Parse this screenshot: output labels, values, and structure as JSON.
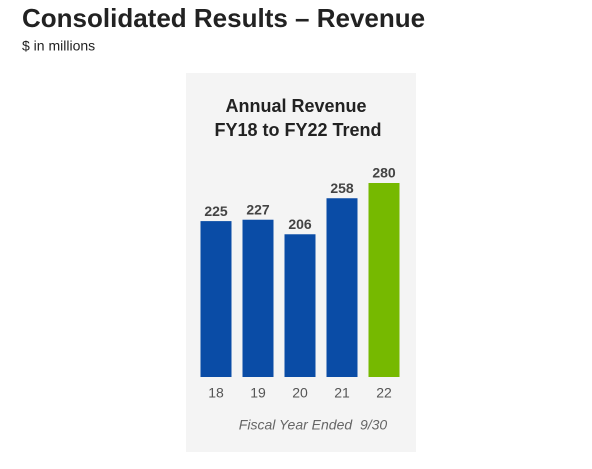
{
  "header": {
    "title": "Consolidated Results – Revenue",
    "subtitle": "$ in millions"
  },
  "chart_data": {
    "type": "bar",
    "title": "Annual Revenue",
    "subtitle": "FY18 to FY22 Trend",
    "categories": [
      "18",
      "19",
      "20",
      "21",
      "22"
    ],
    "values": [
      225,
      227,
      206,
      258,
      280
    ],
    "colors": [
      "#0a4ca6",
      "#0a4ca6",
      "#0a4ca6",
      "#0a4ca6",
      "#76b900"
    ],
    "x_label": "Fiscal Year Ended  9/30",
    "ylim": [
      0,
      280
    ]
  }
}
